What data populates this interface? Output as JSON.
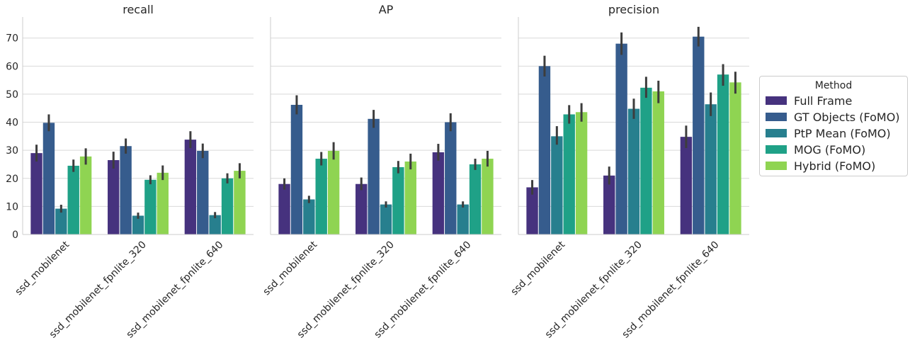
{
  "chart_data": [
    {
      "type": "bar",
      "title": "recall",
      "categories": [
        "ssd_mobilenet",
        "ssd_mobilenet_fpnlite_320",
        "ssd_mobilenet_fpnlite_640"
      ],
      "ylim": [
        0,
        77.5
      ],
      "yticks": [
        0,
        10,
        20,
        30,
        40,
        50,
        60,
        70
      ],
      "grid": true,
      "series": [
        {
          "name": "Full Frame",
          "values": [
            29.0,
            26.5,
            33.8
          ],
          "err": [
            [
              26.0,
              32.0
            ],
            [
              23.5,
              29.5
            ],
            [
              30.8,
              36.8
            ]
          ]
        },
        {
          "name": "GT Objects (FoMO)",
          "values": [
            39.8,
            31.5,
            29.8
          ],
          "err": [
            [
              36.8,
              42.8
            ],
            [
              28.8,
              34.2
            ],
            [
              27.2,
              32.4
            ]
          ]
        },
        {
          "name": "PtP Mean (FoMO)",
          "values": [
            9.2,
            6.7,
            6.9
          ],
          "err": [
            [
              7.8,
              10.6
            ],
            [
              5.6,
              7.8
            ],
            [
              5.8,
              8.0
            ]
          ]
        },
        {
          "name": "MOG (FoMO)",
          "values": [
            24.5,
            19.5,
            20.0
          ],
          "err": [
            [
              22.3,
              26.7
            ],
            [
              17.9,
              21.1
            ],
            [
              18.2,
              21.8
            ]
          ]
        },
        {
          "name": "Hybrid (FoMO)",
          "values": [
            27.8,
            22.0,
            22.7
          ],
          "err": [
            [
              24.9,
              30.7
            ],
            [
              19.4,
              24.6
            ],
            [
              20.0,
              25.4
            ]
          ]
        }
      ]
    },
    {
      "type": "bar",
      "title": "AP",
      "categories": [
        "ssd_mobilenet",
        "ssd_mobilenet_fpnlite_320",
        "ssd_mobilenet_fpnlite_640"
      ],
      "ylim": [
        0,
        77.5
      ],
      "grid": true,
      "series": [
        {
          "name": "Full Frame",
          "values": [
            18.0,
            18.0,
            29.3
          ],
          "err": [
            [
              16.0,
              20.0
            ],
            [
              15.8,
              20.3
            ],
            [
              26.3,
              32.3
            ]
          ]
        },
        {
          "name": "GT Objects (FoMO)",
          "values": [
            46.2,
            41.2,
            40.0
          ],
          "err": [
            [
              42.8,
              49.6
            ],
            [
              38.0,
              44.4
            ],
            [
              36.8,
              43.2
            ]
          ]
        },
        {
          "name": "PtP Mean (FoMO)",
          "values": [
            12.5,
            10.7,
            10.7
          ],
          "err": [
            [
              11.2,
              13.8
            ],
            [
              9.6,
              11.8
            ],
            [
              9.6,
              11.8
            ]
          ]
        },
        {
          "name": "MOG (FoMO)",
          "values": [
            27.0,
            24.0,
            25.0
          ],
          "err": [
            [
              24.6,
              29.4
            ],
            [
              21.8,
              26.2
            ],
            [
              23.0,
              27.0
            ]
          ]
        },
        {
          "name": "Hybrid (FoMO)",
          "values": [
            29.8,
            26.0,
            27.0
          ],
          "err": [
            [
              26.7,
              32.9
            ],
            [
              23.2,
              28.8
            ],
            [
              24.2,
              29.8
            ]
          ]
        }
      ]
    },
    {
      "type": "bar",
      "title": "precision",
      "categories": [
        "ssd_mobilenet",
        "ssd_mobilenet_fpnlite_320",
        "ssd_mobilenet_fpnlite_640"
      ],
      "ylim": [
        0,
        77.5
      ],
      "grid": true,
      "series": [
        {
          "name": "Full Frame",
          "values": [
            16.8,
            21.0,
            34.8
          ],
          "err": [
            [
              14.2,
              19.4
            ],
            [
              17.8,
              24.2
            ],
            [
              30.8,
              38.8
            ]
          ]
        },
        {
          "name": "GT Objects (FoMO)",
          "values": [
            60.0,
            68.0,
            70.5
          ],
          "err": [
            [
              56.3,
              63.7
            ],
            [
              64.0,
              72.0
            ],
            [
              67.0,
              74.0
            ]
          ]
        },
        {
          "name": "PtP Mean (FoMO)",
          "values": [
            35.0,
            44.8,
            46.4
          ],
          "err": [
            [
              32.0,
              38.6
            ],
            [
              41.2,
              48.4
            ],
            [
              42.2,
              50.6
            ]
          ]
        },
        {
          "name": "MOG (FoMO)",
          "values": [
            42.8,
            52.3,
            57.0
          ],
          "err": [
            [
              39.5,
              46.1
            ],
            [
              48.7,
              56.2
            ],
            [
              53.0,
              60.7
            ]
          ]
        },
        {
          "name": "Hybrid (FoMO)",
          "values": [
            43.6,
            51.0,
            54.2
          ],
          "err": [
            [
              40.2,
              46.8
            ],
            [
              46.8,
              54.8
            ],
            [
              50.2,
              58.0
            ]
          ]
        }
      ]
    }
  ],
  "legend": {
    "title": "Method",
    "items": [
      {
        "label": "Full Frame",
        "color": "#46327e"
      },
      {
        "label": "GT Objects (FoMO)",
        "color": "#365c8d"
      },
      {
        "label": "PtP Mean (FoMO)",
        "color": "#277f8e"
      },
      {
        "label": "MOG (FoMO)",
        "color": "#1fa187"
      },
      {
        "label": "Hybrid (FoMO)",
        "color": "#8fd452"
      }
    ]
  }
}
